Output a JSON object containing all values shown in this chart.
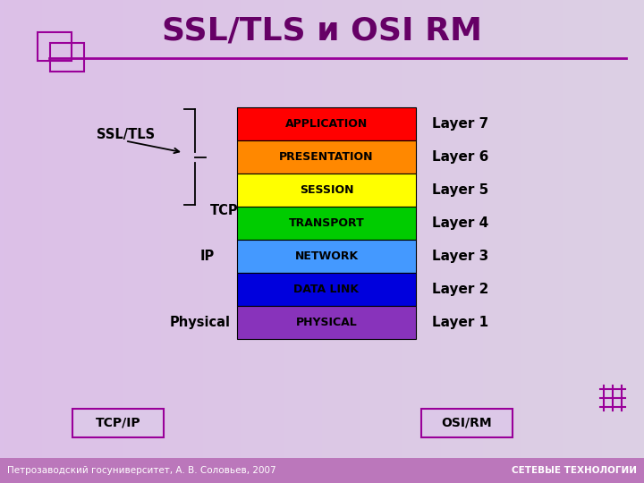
{
  "title": "SSL/TLS и OSI RM",
  "bg_color_left": "#dcc8e8",
  "bg_color_right": "#e0d8e8",
  "title_color": "#660066",
  "layers": [
    {
      "label": "APPLICATION",
      "color": "#ff0000",
      "layer": "Layer 7"
    },
    {
      "label": "PRESENTATION",
      "color": "#ff8800",
      "layer": "Layer 6"
    },
    {
      "label": "SESSION",
      "color": "#ffff00",
      "layer": "Layer 5"
    },
    {
      "label": "TRANSPORT",
      "color": "#00cc00",
      "layer": "Layer 4"
    },
    {
      "label": "NETWORK",
      "color": "#4499ff",
      "layer": "Layer 3"
    },
    {
      "label": "DATA LINK",
      "color": "#0000dd",
      "layer": "Layer 2"
    },
    {
      "label": "PHYSICAL",
      "color": "#8833bb",
      "layer": "Layer 1"
    }
  ],
  "tcp_ip_label": "TCP/IP",
  "osi_rm_label": "OSI/RM",
  "footer_left": "Петрозаводский госуниверситет, А. В. Соловьев, 2007",
  "footer_right": "СЕТЕВЫЕ ТЕХНОЛОГИИ",
  "purple_color": "#990099",
  "footer_bg": "#bb77bb"
}
